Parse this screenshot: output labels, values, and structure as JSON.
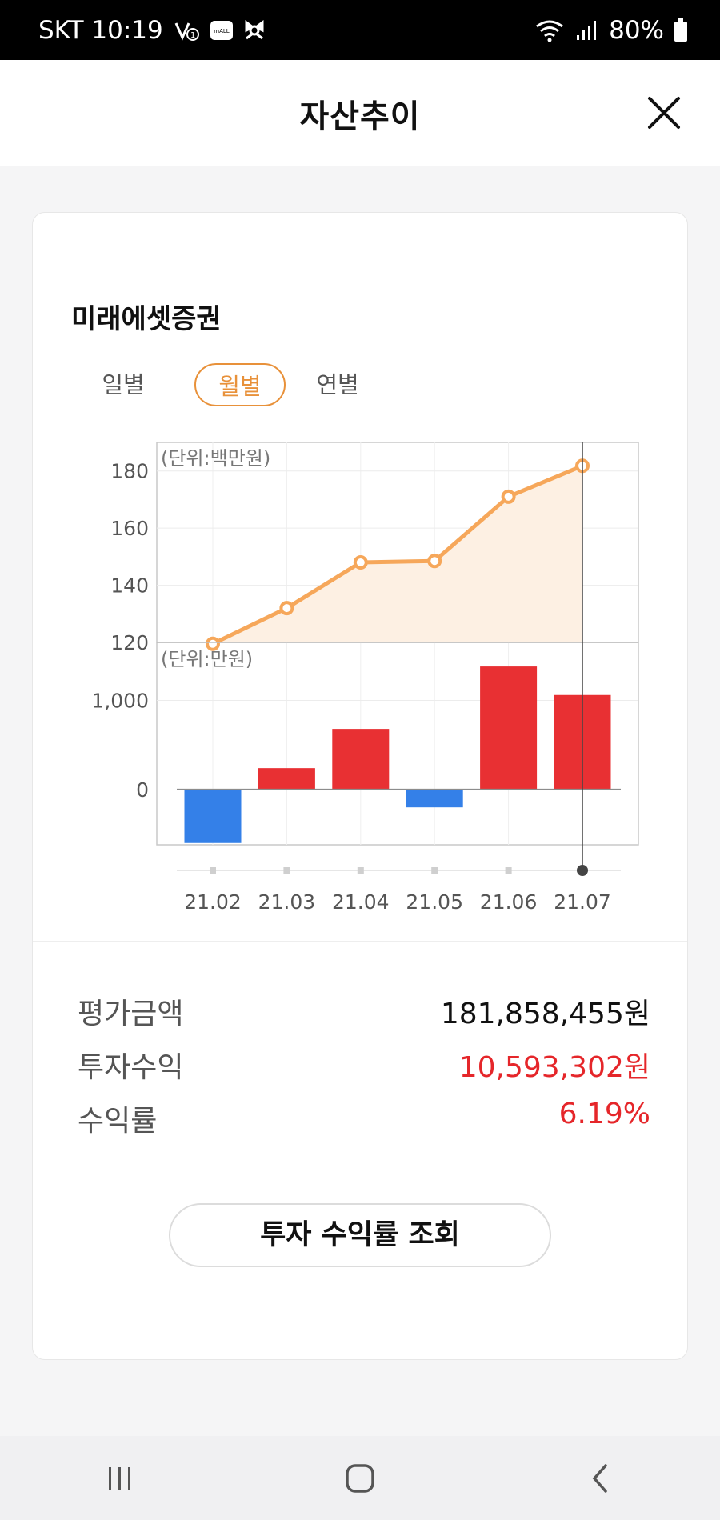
{
  "status_bar": {
    "carrier_time": "SKT 10:19",
    "mall_badge": "mALL",
    "battery": "80%"
  },
  "header": {
    "title": "자산추이"
  },
  "account": {
    "name": "미래에셋증권"
  },
  "period_tabs": [
    {
      "label": "일별",
      "active": false
    },
    {
      "label": "월별",
      "active": true
    },
    {
      "label": "연별",
      "active": false
    }
  ],
  "chart_data": [
    {
      "type": "area",
      "unit_label": "(단위:백만원)",
      "categories": [
        "21.02",
        "21.03",
        "21.04",
        "21.05",
        "21.06",
        "21.07"
      ],
      "values": [
        119.5,
        132,
        148,
        148.5,
        171,
        181.8
      ],
      "y_ticks": [
        "180",
        "160",
        "140",
        "120"
      ],
      "ylim": [
        120,
        190
      ],
      "grid": true,
      "colors": {
        "line": "#f6a75a",
        "fill": "#fdf0e3"
      }
    },
    {
      "type": "bar",
      "unit_label": "(단위:만원)",
      "categories": [
        "21.02",
        "21.03",
        "21.04",
        "21.05",
        "21.06",
        "21.07"
      ],
      "values": [
        -600,
        240,
        680,
        -200,
        1380,
        1060
      ],
      "y_ticks": [
        "1,000",
        "0"
      ],
      "ylim": [
        -620,
        1650
      ],
      "grid": true,
      "colors": {
        "positive": "#e83033",
        "negative": "#3480e8"
      }
    }
  ],
  "x_axis_labels": [
    "21.02",
    "21.03",
    "21.04",
    "21.05",
    "21.06",
    "21.07"
  ],
  "selected_index": 5,
  "summary": [
    {
      "label": "평가금액",
      "value": "181,858,455원",
      "color": "#111111"
    },
    {
      "label": "투자수익",
      "value": "10,593,302원",
      "color": "#e5262a"
    },
    {
      "label": "수익률",
      "value": "6.19%",
      "color": "#e5262a"
    }
  ],
  "action_button": {
    "label": "투자 수익률 조회"
  },
  "nav": {
    "icons": [
      "recent-apps-icon",
      "home-icon",
      "back-icon"
    ]
  }
}
